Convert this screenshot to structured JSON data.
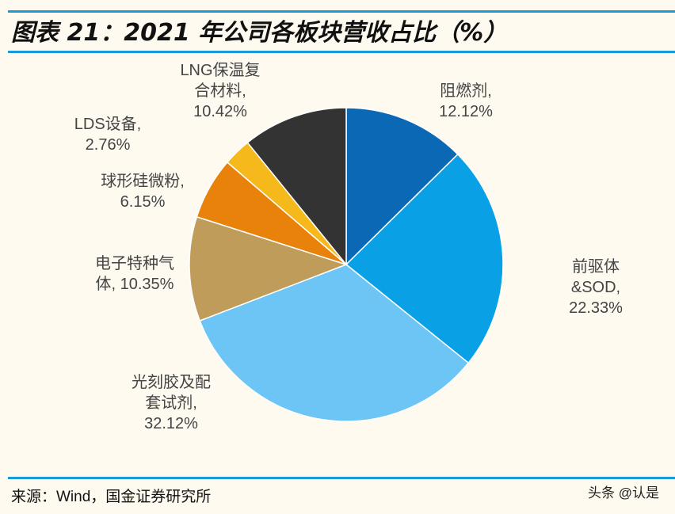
{
  "title": "图表 21：2021 年公司各板块营收占比（%）",
  "source": "来源：Wind，国金证券研究所",
  "watermark": "头条 @认是",
  "chart_data": {
    "type": "pie",
    "title": "图表 21：2021 年公司各板块营收占比（%）",
    "start": "top-clockwise",
    "slices": [
      {
        "name": "阻燃剂",
        "line1": "阻燃剂,",
        "line2": "12.12%",
        "value": 12.12,
        "color": "#0a68b4"
      },
      {
        "name": "前驱体&SOD",
        "line1": "前驱体",
        "line2": "&SOD,",
        "line3": "22.33%",
        "value": 22.33,
        "color": "#0aa0e6"
      },
      {
        "name": "光刻胶及配套试剂",
        "line1": "光刻胶及配",
        "line2": "套试剂,",
        "line3": "32.12%",
        "value": 32.12,
        "color": "#6cc5f5"
      },
      {
        "name": "电子特种气体",
        "line1": "电子特种气",
        "line2": "体, 10.35%",
        "value": 10.35,
        "color": "#c09c5b"
      },
      {
        "name": "球形硅微粉",
        "line1": "球形硅微粉,",
        "line2": "6.15%",
        "value": 6.15,
        "color": "#e8820a"
      },
      {
        "name": "LDS设备",
        "line1": "LDS设备,",
        "line2": "2.76%",
        "value": 2.76,
        "color": "#f6b91c"
      },
      {
        "name": "LNG保温复合材料",
        "line1": "LNG保温复",
        "line2": "合材料,",
        "line3": "10.42%",
        "value": 10.42,
        "color": "#333333"
      }
    ]
  }
}
